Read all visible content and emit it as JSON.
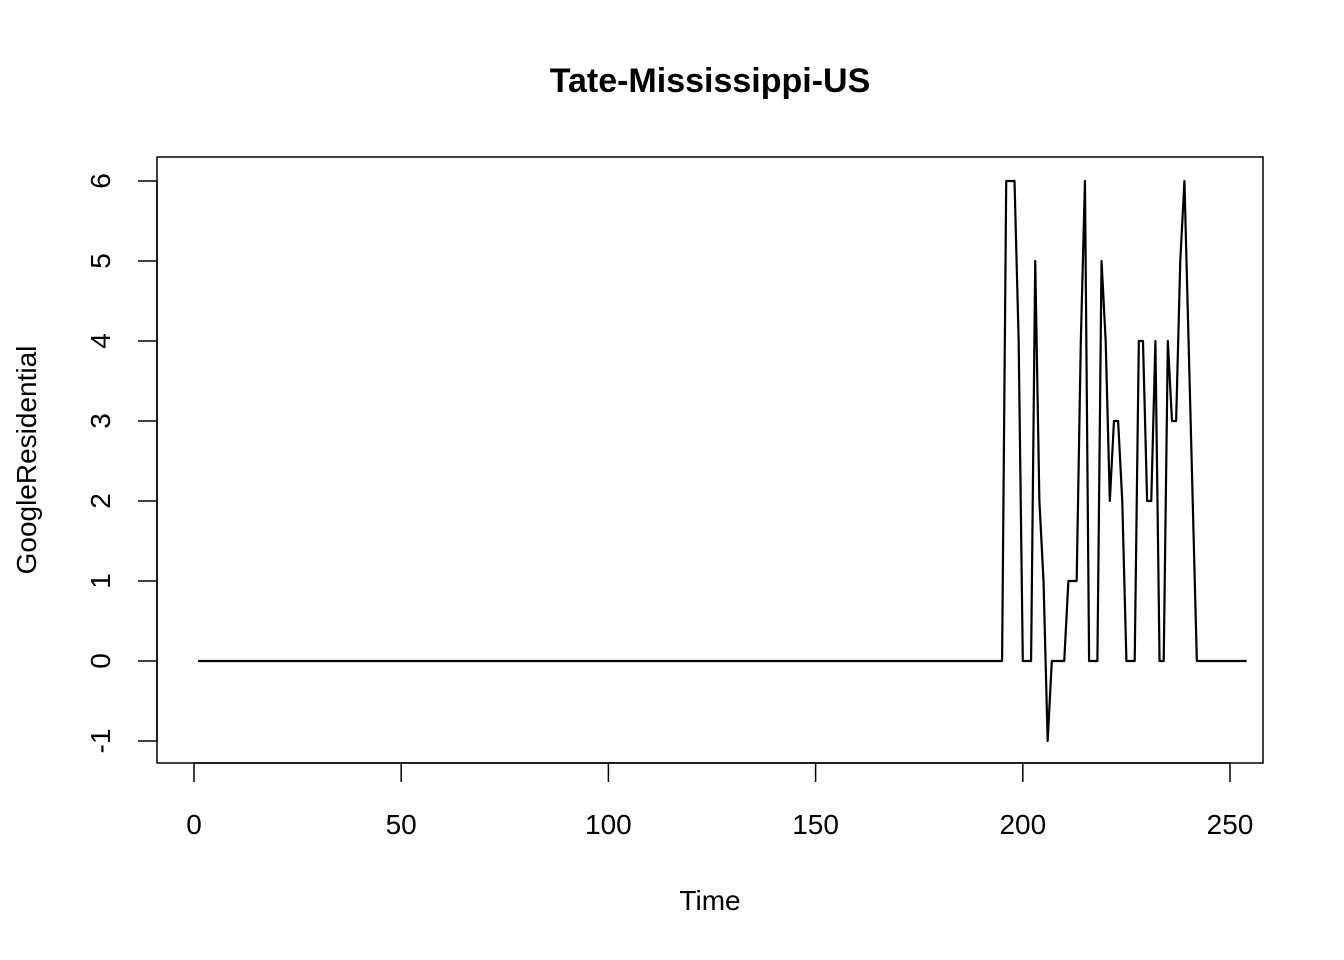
{
  "chart_data": {
    "type": "line",
    "title": "Tate-Mississippi-US",
    "xlabel": "Time",
    "ylabel": "GoogleResidential",
    "xlim": [
      1,
      248
    ],
    "ylim": [
      -1,
      6
    ],
    "x_ticks": [
      0,
      50,
      100,
      150,
      200,
      250
    ],
    "y_ticks": [
      -1,
      0,
      1,
      2,
      3,
      4,
      5,
      6
    ],
    "grid": false,
    "legend": "none",
    "line_color": "#000000",
    "series": [
      {
        "x_start": 1,
        "x_step": 1,
        "values": [
          0,
          0,
          0,
          0,
          0,
          0,
          0,
          0,
          0,
          0,
          0,
          0,
          0,
          0,
          0,
          0,
          0,
          0,
          0,
          0,
          0,
          0,
          0,
          0,
          0,
          0,
          0,
          0,
          0,
          0,
          0,
          0,
          0,
          0,
          0,
          0,
          0,
          0,
          0,
          0,
          0,
          0,
          0,
          0,
          0,
          0,
          0,
          0,
          0,
          0,
          0,
          0,
          0,
          0,
          0,
          0,
          0,
          0,
          0,
          0,
          0,
          0,
          0,
          0,
          0,
          0,
          0,
          0,
          0,
          0,
          0,
          0,
          0,
          0,
          0,
          0,
          0,
          0,
          0,
          0,
          0,
          0,
          0,
          0,
          0,
          0,
          0,
          0,
          0,
          0,
          0,
          0,
          0,
          0,
          0,
          0,
          0,
          0,
          0,
          0,
          0,
          0,
          0,
          0,
          0,
          0,
          0,
          0,
          0,
          0,
          0,
          0,
          0,
          0,
          0,
          0,
          0,
          0,
          0,
          0,
          0,
          0,
          0,
          0,
          0,
          0,
          0,
          0,
          0,
          0,
          0,
          0,
          0,
          0,
          0,
          0,
          0,
          0,
          0,
          0,
          0,
          0,
          0,
          0,
          0,
          0,
          0,
          0,
          0,
          0,
          0,
          0,
          0,
          0,
          0,
          0,
          0,
          0,
          0,
          0,
          0,
          0,
          0,
          0,
          0,
          0,
          0,
          0,
          0,
          0,
          0,
          0,
          0,
          0,
          0,
          0,
          0,
          0,
          0,
          0,
          0,
          0,
          0,
          0,
          0,
          0,
          0,
          0,
          0,
          0,
          0,
          0,
          0,
          0,
          0,
          6,
          6,
          6,
          4,
          0,
          0,
          0,
          5,
          2,
          1,
          -1,
          0,
          0,
          0,
          0,
          1,
          1,
          1,
          4,
          6,
          0,
          0,
          0,
          5,
          4,
          2,
          3,
          3,
          2,
          0,
          0,
          0,
          4,
          4,
          2,
          2,
          4,
          0,
          0,
          4,
          3,
          3,
          5,
          6,
          4,
          2,
          0,
          0,
          0,
          0,
          0,
          0,
          0,
          0,
          0,
          0,
          0,
          0,
          0
        ]
      }
    ]
  }
}
